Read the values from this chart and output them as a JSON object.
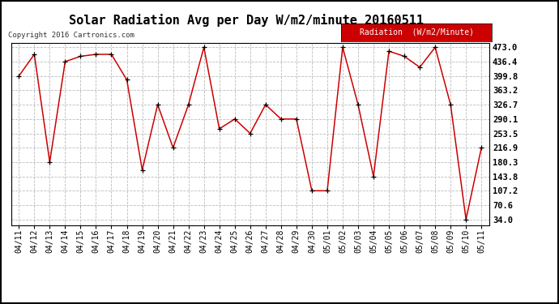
{
  "title": "Solar Radiation Avg per Day W/m2/minute 20160511",
  "copyright": "Copyright 2016 Cartronics.com",
  "legend_label": "Radiation  (W/m2/Minute)",
  "dates": [
    "04/11",
    "04/12",
    "04/13",
    "04/14",
    "04/15",
    "04/16",
    "04/17",
    "04/18",
    "04/19",
    "04/20",
    "04/21",
    "04/22",
    "04/23",
    "04/24",
    "04/25",
    "04/26",
    "04/27",
    "04/28",
    "04/29",
    "04/30",
    "05/01",
    "05/02",
    "05/03",
    "05/04",
    "05/05",
    "05/06",
    "05/07",
    "05/08",
    "05/09",
    "05/10",
    "05/11"
  ],
  "values": [
    399.8,
    455.0,
    180.3,
    436.4,
    450.0,
    455.0,
    455.0,
    390.0,
    160.0,
    326.7,
    216.9,
    326.7,
    473.0,
    265.0,
    290.1,
    253.5,
    326.7,
    290.1,
    290.1,
    107.2,
    107.2,
    473.0,
    326.7,
    143.8,
    463.0,
    450.0,
    422.0,
    473.0,
    326.7,
    34.0,
    216.9
  ],
  "line_color": "#cc0000",
  "marker_color": "#000000",
  "bg_color": "#ffffff",
  "grid_color": "#bbbbbb",
  "ylim_min": 20.0,
  "ylim_max": 485.0,
  "yticks": [
    34.0,
    70.6,
    107.2,
    143.8,
    180.3,
    216.9,
    253.5,
    290.1,
    326.7,
    363.2,
    399.8,
    436.4,
    473.0
  ],
  "legend_bg": "#cc0000",
  "legend_text_color": "#ffffff",
  "border_color": "#000000",
  "title_fontsize": 11,
  "copyright_fontsize": 6.5,
  "tick_fontsize": 7,
  "ytick_fontsize": 7.5,
  "legend_fontsize": 7
}
